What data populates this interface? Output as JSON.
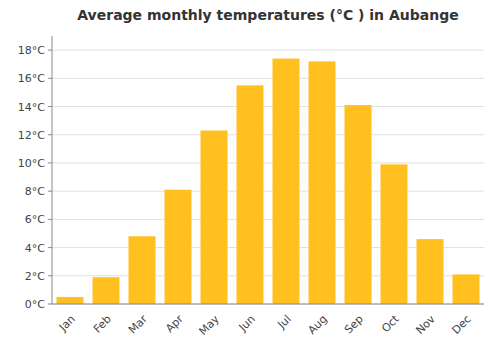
{
  "chart_data": {
    "type": "bar",
    "title": "Average monthly temperatures (°C ) in Aubange",
    "categories": [
      "Jan",
      "Feb",
      "Mar",
      "Apr",
      "May",
      "Jun",
      "Jul",
      "Aug",
      "Sep",
      "Oct",
      "Nov",
      "Dec"
    ],
    "values": [
      0.5,
      1.9,
      4.8,
      8.1,
      12.3,
      15.5,
      17.4,
      17.2,
      14.1,
      9.9,
      4.6,
      2.1
    ],
    "color": "#FFC020",
    "ylim": [
      0,
      19
    ],
    "yticks": [
      {
        "value": 0,
        "label": "0°C"
      },
      {
        "value": 2,
        "label": "2°C"
      },
      {
        "value": 4,
        "label": "4°C"
      },
      {
        "value": 6,
        "label": "6°C"
      },
      {
        "value": 8,
        "label": "8°C"
      },
      {
        "value": 10,
        "label": "10°C"
      },
      {
        "value": 12,
        "label": "12°C"
      },
      {
        "value": 14,
        "label": "14°C"
      },
      {
        "value": 16,
        "label": "16°C"
      },
      {
        "value": 18,
        "label": "18°C"
      }
    ],
    "grid": true
  }
}
